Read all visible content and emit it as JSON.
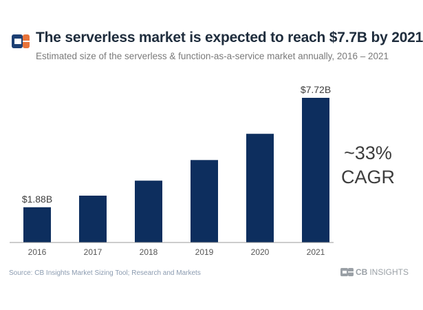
{
  "header": {
    "title": "The serverless market is expected to reach $7.7B by 2021",
    "subtitle": "Estimated size of the serverless & function-as-a-service market annually, 2016 – 2021"
  },
  "annotation": {
    "line1": "~33%",
    "line2": "CAGR"
  },
  "footer": {
    "source": "Source: CB Insights Market Sizing Tool; Research and Markets",
    "brand_bold": "CB",
    "brand_light": "INSIGHTS"
  },
  "colors": {
    "bar": "#0d2e5e",
    "axis": "#9a9a9a",
    "logo_blue": "#1c3f73",
    "logo_orange": "#e8743b"
  },
  "chart_data": {
    "type": "bar",
    "categories": [
      "2016",
      "2017",
      "2018",
      "2019",
      "2020",
      "2021"
    ],
    "values": [
      1.88,
      2.5,
      3.3,
      4.4,
      5.8,
      7.72
    ],
    "data_labels": [
      "$1.88B",
      "",
      "",
      "",
      "",
      "$7.72B"
    ],
    "ylim": [
      0,
      7.72
    ],
    "grid": false,
    "title": "The serverless market is expected to reach $7.7B by 2021",
    "subtitle": "Estimated size of the serverless & function-as-a-service market annually, 2016 – 2021",
    "xlabel": "",
    "ylabel": ""
  }
}
